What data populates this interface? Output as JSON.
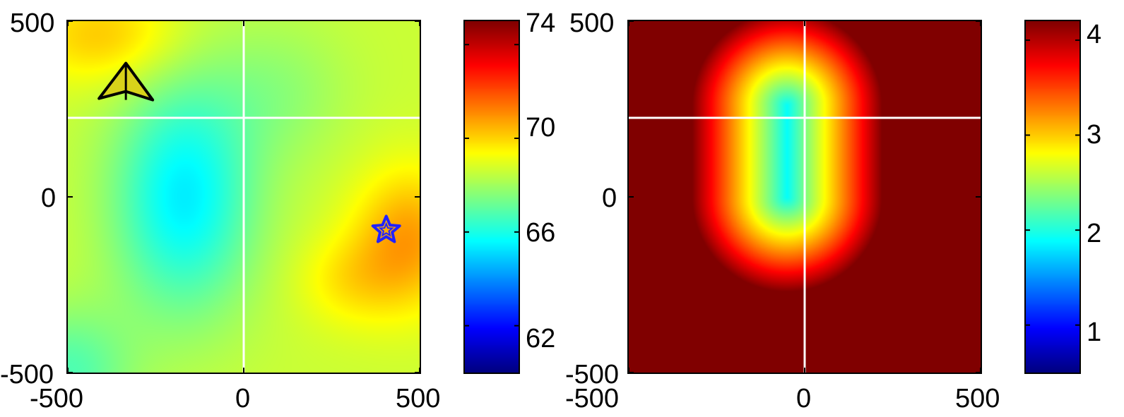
{
  "chart_data": [
    {
      "type": "heatmap",
      "title": "",
      "xlabel": "",
      "ylabel": "",
      "xlim": [
        -500,
        500
      ],
      "ylim": [
        -500,
        500
      ],
      "x_ticks": [
        "-500",
        "0",
        "500"
      ],
      "y_ticks": [
        "500",
        "0",
        "-500"
      ],
      "colormap": "jet",
      "colorbar": {
        "ticks": [
          "74",
          "70",
          "66",
          "62"
        ],
        "min": 60,
        "max": 75
      },
      "crosshair": {
        "x": 0,
        "y": 225,
        "color": "#ffffff"
      },
      "field": {
        "base": 68.6,
        "components": [
          {
            "x": -170,
            "y": 0,
            "sx": 200,
            "sy": 330,
            "amp": -3.2
          },
          {
            "x": 470,
            "y": -120,
            "sx": 160,
            "sy": 200,
            "amp": 2.2
          },
          {
            "x": 300,
            "y": -240,
            "sx": 150,
            "sy": 130,
            "amp": 1.0
          },
          {
            "x": -400,
            "y": 460,
            "sx": 220,
            "sy": 140,
            "amp": 1.6
          },
          {
            "x": -500,
            "y": -500,
            "sx": 180,
            "sy": 180,
            "amp": -1.8
          },
          {
            "x": 100,
            "y": 300,
            "sx": 200,
            "sy": 200,
            "amp": -0.8
          }
        ]
      },
      "markers": [
        {
          "kind": "aircraft",
          "x": -335,
          "y": 300,
          "color": "#000000"
        },
        {
          "kind": "star",
          "x": 405,
          "y": -95,
          "color": "#2222ff"
        }
      ]
    },
    {
      "type": "heatmap",
      "title": "",
      "xlabel": "",
      "ylabel": "",
      "xlim": [
        -500,
        500
      ],
      "ylim": [
        -500,
        500
      ],
      "x_ticks": [
        "-500",
        "0",
        "500"
      ],
      "y_ticks": [
        "500",
        "0",
        "-500"
      ],
      "colormap": "jet",
      "colorbar": {
        "ticks": [
          "4",
          "3",
          "2",
          "1"
        ],
        "min": 0.5,
        "max": 4.2
      },
      "crosshair": {
        "x": 0,
        "y": 225,
        "color": "#ffffff"
      },
      "field": {
        "type": "stadium",
        "p1": [
          -50,
          260
        ],
        "p2": [
          -50,
          0
        ],
        "center_value": 1.9,
        "scale": 0.0085
      },
      "markers": []
    }
  ]
}
